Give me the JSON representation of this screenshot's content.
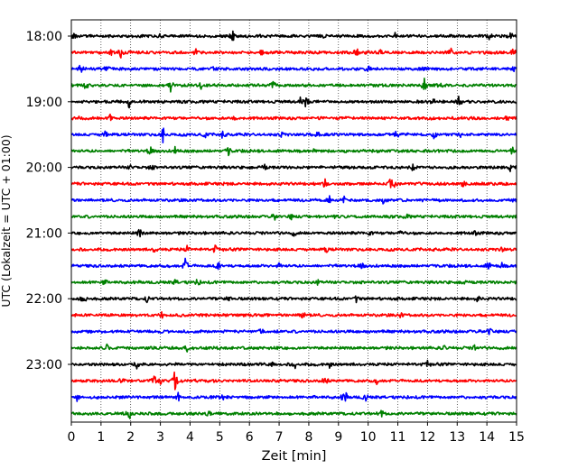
{
  "chart_data": {
    "type": "line",
    "title": "",
    "xlabel": "Zeit  [min]",
    "ylabel": "UTC (Lokalzeit = UTC + 01:00)",
    "xlim": [
      0,
      15
    ],
    "x_ticks": [
      0,
      1,
      2,
      3,
      4,
      5,
      6,
      7,
      8,
      9,
      10,
      11,
      12,
      13,
      14,
      15
    ],
    "x_tick_labels": [
      "0",
      "1",
      "2",
      "3",
      "4",
      "5",
      "6",
      "7",
      "8",
      "9",
      "10",
      "11",
      "12",
      "13",
      "14",
      "15"
    ],
    "y_tick_labels": [
      "18:00",
      "19:00",
      "20:00",
      "21:00",
      "22:00",
      "23:00"
    ],
    "trace_interval_min": 15,
    "grid": "vertical dotted",
    "color_cycle": [
      "#000000",
      "#ff0000",
      "#0000ff",
      "#008000"
    ],
    "series": [
      {
        "start": "18:00",
        "color": "#000000",
        "spikes": [
          [
            0.1,
            0.35
          ],
          [
            3,
            0.25
          ],
          [
            5.45,
            0.6
          ],
          [
            8.5,
            0.3
          ],
          [
            10.9,
            0.3
          ],
          [
            14.1,
            0.45
          ],
          [
            14.8,
            0.35
          ]
        ]
      },
      {
        "start": "18:15",
        "color": "#ff0000",
        "spikes": [
          [
            1.35,
            0.35
          ],
          [
            1.65,
            0.7
          ],
          [
            4.2,
            0.3
          ],
          [
            6.4,
            0.3
          ],
          [
            9.6,
            0.65
          ],
          [
            10.4,
            0.3
          ],
          [
            12.8,
            0.55
          ],
          [
            14.9,
            0.4
          ]
        ]
      },
      {
        "start": "18:30",
        "color": "#0000ff",
        "spikes": [
          [
            0.3,
            0.45
          ],
          [
            1.2,
            0.55
          ],
          [
            4.8,
            0.3
          ],
          [
            10,
            0.3
          ],
          [
            11.8,
            0.3
          ],
          [
            14.9,
            0.3
          ]
        ]
      },
      {
        "start": "18:45",
        "color": "#008000",
        "spikes": [
          [
            0.5,
            0.45
          ],
          [
            3.35,
            0.8
          ],
          [
            4.35,
            0.5
          ],
          [
            6.8,
            0.5
          ],
          [
            11.9,
            0.9
          ],
          [
            12.4,
            0.35
          ]
        ]
      },
      {
        "start": "19:00",
        "color": "#000000",
        "spikes": [
          [
            1.95,
            0.7
          ],
          [
            7.7,
            0.45
          ],
          [
            7.9,
            0.55
          ],
          [
            12.2,
            0.3
          ],
          [
            13.05,
            0.55
          ]
        ]
      },
      {
        "start": "19:15",
        "color": "#ff0000",
        "spikes": [
          [
            0.3,
            0.3
          ],
          [
            1.3,
            0.55
          ],
          [
            5.5,
            0.3
          ],
          [
            12.15,
            0.3
          ],
          [
            14.7,
            0.3
          ]
        ]
      },
      {
        "start": "19:30",
        "color": "#0000ff",
        "spikes": [
          [
            1.15,
            0.45
          ],
          [
            3.1,
            1.0
          ],
          [
            4.5,
            0.3
          ],
          [
            5.1,
            0.45
          ],
          [
            7.1,
            0.3
          ],
          [
            8.3,
            0.35
          ],
          [
            10.95,
            0.45
          ],
          [
            12.25,
            0.6
          ],
          [
            13.1,
            0.3
          ]
        ]
      },
      {
        "start": "19:45",
        "color": "#008000",
        "spikes": [
          [
            2.65,
            0.5
          ],
          [
            3.5,
            0.5
          ],
          [
            5.3,
            0.5
          ],
          [
            8.2,
            0.35
          ],
          [
            14.85,
            0.4
          ]
        ]
      },
      {
        "start": "20:00",
        "color": "#000000",
        "spikes": [
          [
            2,
            0.3
          ],
          [
            2.7,
            0.35
          ],
          [
            6.5,
            0.3
          ],
          [
            11.5,
            0.4
          ],
          [
            14.8,
            0.45
          ]
        ]
      },
      {
        "start": "20:15",
        "color": "#ff0000",
        "spikes": [
          [
            8.55,
            0.5
          ],
          [
            10.75,
            0.75
          ],
          [
            10.9,
            0.5
          ],
          [
            13.2,
            0.3
          ]
        ]
      },
      {
        "start": "20:30",
        "color": "#0000ff",
        "spikes": [
          [
            8.7,
            0.3
          ],
          [
            9.2,
            0.45
          ],
          [
            10.5,
            0.3
          ],
          [
            14.8,
            0.3
          ]
        ]
      },
      {
        "start": "20:45",
        "color": "#008000",
        "spikes": [
          [
            6.85,
            0.3
          ],
          [
            7.4,
            0.3
          ],
          [
            8.9,
            0.25
          ],
          [
            11.3,
            0.25
          ]
        ]
      },
      {
        "start": "21:00",
        "color": "#000000",
        "spikes": [
          [
            2.3,
            0.55
          ],
          [
            7.5,
            0.3
          ],
          [
            10.05,
            0.3
          ],
          [
            11.1,
            0.3
          ],
          [
            13.6,
            0.3
          ]
        ]
      },
      {
        "start": "21:15",
        "color": "#ff0000",
        "spikes": [
          [
            2.8,
            0.3
          ],
          [
            3.9,
            0.3
          ],
          [
            4.85,
            0.4
          ],
          [
            8.6,
            0.3
          ],
          [
            14.5,
            0.3
          ]
        ]
      },
      {
        "start": "21:30",
        "color": "#0000ff",
        "spikes": [
          [
            3.85,
            1.0
          ],
          [
            4.95,
            0.6
          ],
          [
            7.0,
            0.3
          ],
          [
            9.8,
            0.3
          ],
          [
            14.05,
            0.5
          ],
          [
            14.5,
            0.3
          ]
        ]
      },
      {
        "start": "21:45",
        "color": "#008000",
        "spikes": [
          [
            1.1,
            0.35
          ],
          [
            3.5,
            0.3
          ],
          [
            4.25,
            0.35
          ],
          [
            8.3,
            0.25
          ],
          [
            13.2,
            0.3
          ]
        ]
      },
      {
        "start": "22:00",
        "color": "#000000",
        "spikes": [
          [
            0.3,
            0.4
          ],
          [
            0.5,
            0.35
          ],
          [
            2.55,
            0.3
          ],
          [
            5.3,
            0.3
          ],
          [
            9.6,
            0.3
          ],
          [
            13.7,
            0.3
          ]
        ]
      },
      {
        "start": "22:15",
        "color": "#ff0000",
        "spikes": [
          [
            3.05,
            0.3
          ],
          [
            7.8,
            0.7
          ],
          [
            11.1,
            0.25
          ]
        ]
      },
      {
        "start": "22:30",
        "color": "#0000ff",
        "spikes": [
          [
            6.4,
            0.45
          ],
          [
            14.1,
            0.6
          ]
        ]
      },
      {
        "start": "22:45",
        "color": "#008000",
        "spikes": [
          [
            1.2,
            0.3
          ],
          [
            3.9,
            0.3
          ],
          [
            12.55,
            0.35
          ],
          [
            13.6,
            0.35
          ]
        ]
      },
      {
        "start": "23:00",
        "color": "#000000",
        "spikes": [
          [
            2.2,
            0.45
          ],
          [
            6.75,
            0.3
          ],
          [
            7.55,
            0.4
          ],
          [
            8.7,
            0.3
          ],
          [
            12,
            0.3
          ]
        ]
      },
      {
        "start": "23:15",
        "color": "#ff0000",
        "spikes": [
          [
            1.7,
            0.35
          ],
          [
            2.8,
            0.45
          ],
          [
            3.0,
            0.35
          ],
          [
            3.5,
            1.4
          ],
          [
            8.55,
            0.6
          ],
          [
            10.3,
            0.3
          ]
        ]
      },
      {
        "start": "23:30",
        "color": "#0000ff",
        "spikes": [
          [
            0.2,
            0.4
          ],
          [
            3.6,
            0.45
          ],
          [
            5.1,
            0.3
          ],
          [
            9.2,
            1.0
          ],
          [
            9.9,
            0.45
          ]
        ]
      },
      {
        "start": "23:45",
        "color": "#008000",
        "spikes": [
          [
            1.95,
            1.0
          ],
          [
            4.6,
            0.3
          ],
          [
            10.45,
            0.4
          ]
        ]
      }
    ]
  }
}
